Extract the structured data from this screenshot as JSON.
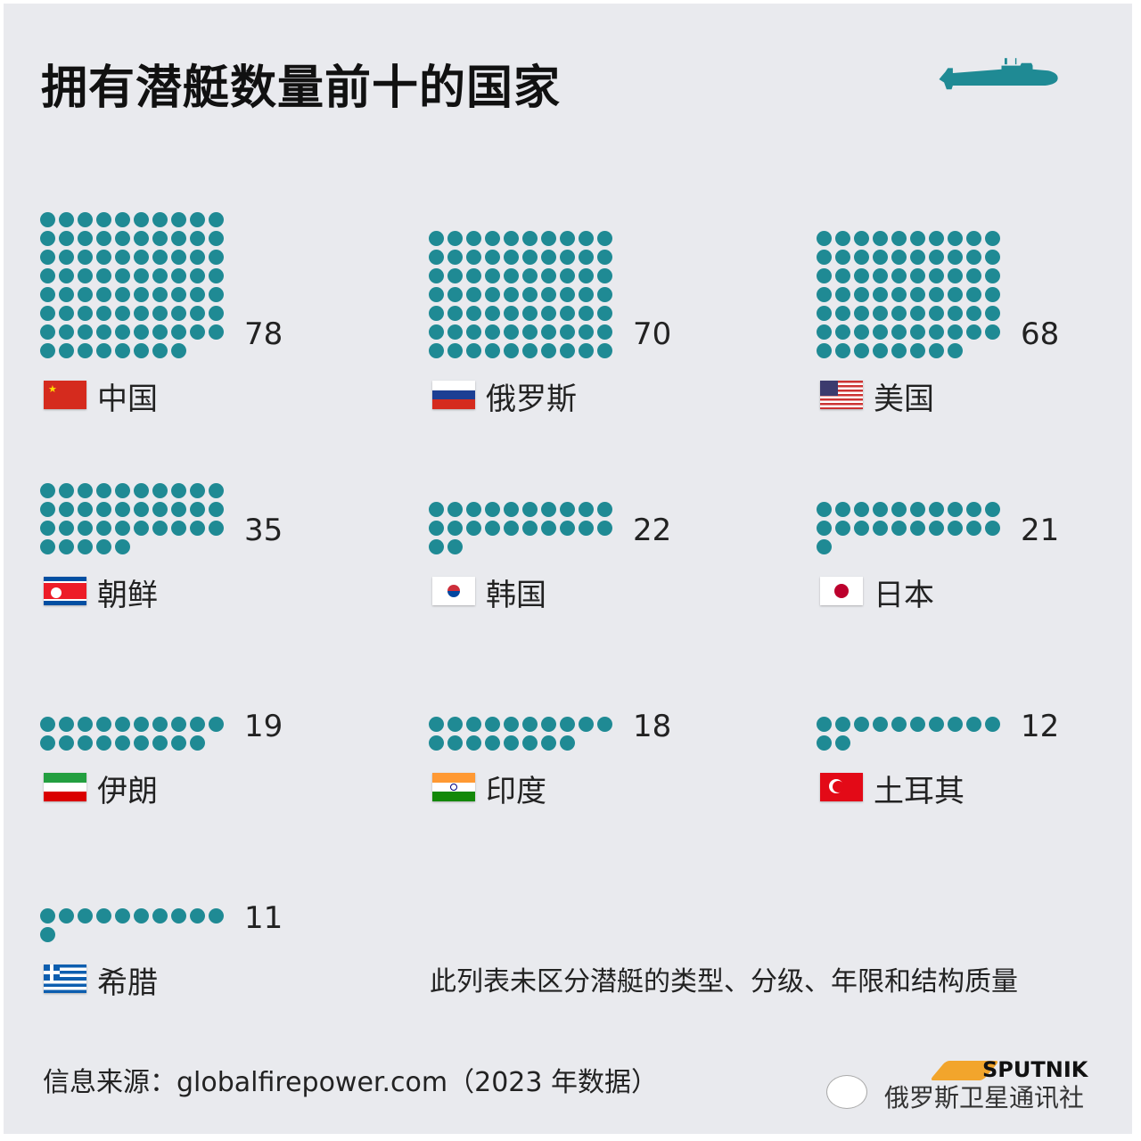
{
  "title": "拥有潜艇数量前十的国家",
  "note": "此列表未区分潜艇的类型、分级、年限和结构质量",
  "source": "信息来源：globalfirepower.com（2023 年数据）",
  "logo": {
    "brand": "SPUTNIK",
    "agency": "俄罗斯卫星通讯社"
  },
  "colors": {
    "dot": "#1f8a94",
    "submarine": "#1f8a94",
    "background": "#e9eaee"
  },
  "chart_data": {
    "type": "pictogram",
    "title": "拥有潜艇数量前十的国家",
    "dots_per_row": 10,
    "unit_per_dot": 1,
    "categories": [
      "中国",
      "俄罗斯",
      "美国",
      "朝鲜",
      "韩国",
      "日本",
      "伊朗",
      "印度",
      "土耳其",
      "希腊"
    ],
    "values": [
      78,
      70,
      68,
      35,
      22,
      21,
      19,
      18,
      12,
      11
    ],
    "items": [
      {
        "country": "中国",
        "value": "78",
        "flag": "china-flag"
      },
      {
        "country": "俄罗斯",
        "value": "70",
        "flag": "russia-flag"
      },
      {
        "country": "美国",
        "value": "68",
        "flag": "usa-flag"
      },
      {
        "country": "朝鲜",
        "value": "35",
        "flag": "north-korea-flag"
      },
      {
        "country": "韩国",
        "value": "22",
        "flag": "south-korea-flag"
      },
      {
        "country": "日本",
        "value": "21",
        "flag": "japan-flag"
      },
      {
        "country": "伊朗",
        "value": "19",
        "flag": "iran-flag"
      },
      {
        "country": "印度",
        "value": "18",
        "flag": "india-flag"
      },
      {
        "country": "土耳其",
        "value": "12",
        "flag": "turkey-flag"
      },
      {
        "country": "希腊",
        "value": "11",
        "flag": "greece-flag"
      }
    ]
  }
}
